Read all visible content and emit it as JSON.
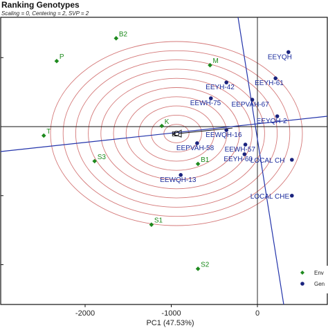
{
  "chart_data": {
    "type": "scatter",
    "title": "Ranking Genotypes",
    "subtitle": "Scaling = 0, Centering = 2, SVP = 2",
    "xlabel": "PC1 (47.53%)",
    "ylabel": "",
    "xlim": [
      -2480,
      400
    ],
    "ylim": [
      -1000,
      1370
    ],
    "x_ticks": [
      -2000,
      -1000,
      0
    ],
    "y_ticks": [
      -1000,
      -500,
      0,
      500,
      1000
    ],
    "x_tick_labels": [
      "-2000",
      "-1000",
      "0"
    ],
    "legend_placement": "bottom-right",
    "colors": {
      "env": "#1e8a1e",
      "gen": "#1a237e",
      "circle": "#d47878",
      "line": "#2233aa",
      "axis": "#111111"
    },
    "series": [
      {
        "name": "Env",
        "marker": "diamond",
        "points": [
          {
            "label": "P",
            "x": -2330,
            "y": 475
          },
          {
            "label": "B2",
            "x": -1640,
            "y": 640
          },
          {
            "label": "M",
            "x": -550,
            "y": 445
          },
          {
            "label": "T",
            "x": -2480,
            "y": -65
          },
          {
            "label": "K",
            "x": -1110,
            "y": 5
          },
          {
            "label": "S3",
            "x": -1890,
            "y": -250
          },
          {
            "label": "B1",
            "x": -690,
            "y": -270
          },
          {
            "label": "S1",
            "x": -1230,
            "y": -710
          },
          {
            "label": "S2",
            "x": -690,
            "y": -1030
          }
        ]
      },
      {
        "name": "Gen",
        "marker": "circle",
        "points": [
          {
            "label": "EEYQH",
            "x": 360,
            "y": 540
          },
          {
            "label": "EEYH-61",
            "x": 210,
            "y": 350
          },
          {
            "label": "EEYH-42",
            "x": -360,
            "y": 320
          },
          {
            "label": "EEWH-75",
            "x": -540,
            "y": 205
          },
          {
            "label": "EEPVAH-67",
            "x": -60,
            "y": 195
          },
          {
            "label": "EEYQH-2",
            "x": 230,
            "y": 75
          },
          {
            "label": "EEWQH-16",
            "x": -360,
            "y": -25
          },
          {
            "label": "EEPVAH-58",
            "x": -700,
            "y": -120
          },
          {
            "label": "EEWH-57",
            "x": -140,
            "y": -130
          },
          {
            "label": "EEYH-60",
            "x": -150,
            "y": -200
          },
          {
            "label": "EEWQH-13",
            "x": -890,
            "y": -350
          },
          {
            "label": "LOCAL CH",
            "x": 400,
            "y": -240
          },
          {
            "label": "LOCAL CHE",
            "x": 400,
            "y": -500
          }
        ]
      }
    ],
    "centre_label": "E",
    "circle_count": 10
  }
}
